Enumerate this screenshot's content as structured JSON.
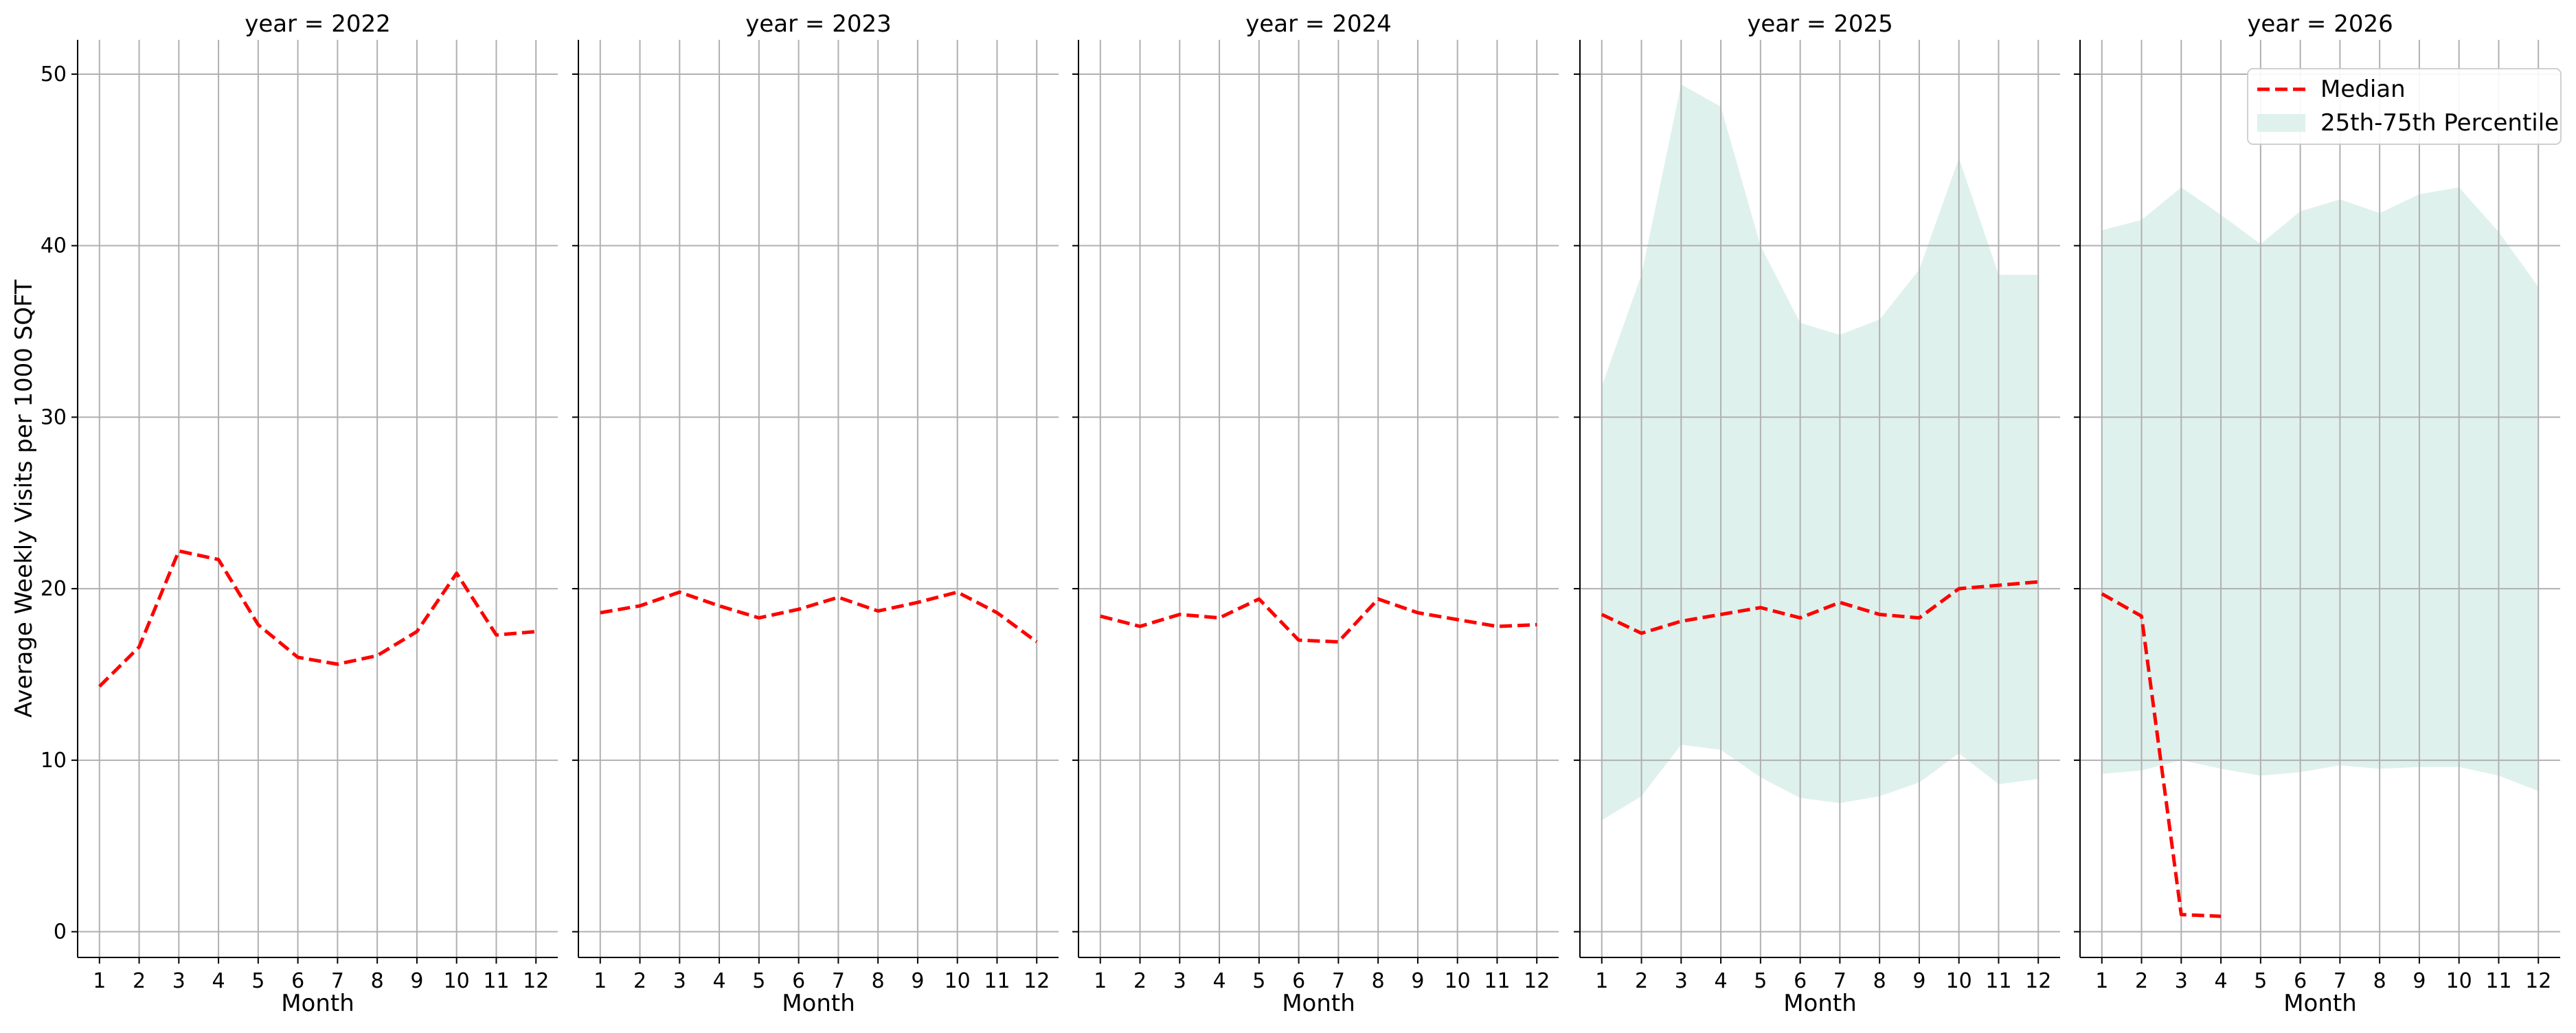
{
  "chart_data": {
    "type": "line",
    "ylabel": "Average Weekly Visits per 1000 SQFT",
    "xlabel": "Month",
    "ylim": [
      -1.5,
      52
    ],
    "yticks": [
      0,
      10,
      20,
      30,
      40,
      50
    ],
    "xticks": [
      1,
      2,
      3,
      4,
      5,
      6,
      7,
      8,
      9,
      10,
      11,
      12
    ],
    "xlim": [
      0.45,
      12.55
    ],
    "grid": true,
    "legend": {
      "position": "top-right",
      "entries": [
        "Median",
        "25th-75th Percentile"
      ]
    },
    "colors": {
      "median": "#ff0000",
      "band": "#dff1ec",
      "grid": "#b0b0b0"
    },
    "panels": [
      {
        "title": "year = 2022",
        "median": {
          "x": [
            1,
            2,
            3,
            4,
            5,
            6,
            7,
            8,
            9,
            10,
            11,
            12
          ],
          "y": [
            14.3,
            16.6,
            22.2,
            21.7,
            17.9,
            16.0,
            15.6,
            16.1,
            17.5,
            20.9,
            17.3,
            17.5
          ]
        },
        "band": null
      },
      {
        "title": "year = 2023",
        "median": {
          "x": [
            1,
            2,
            3,
            4,
            5,
            6,
            7,
            8,
            9,
            10,
            11,
            12
          ],
          "y": [
            18.6,
            19.0,
            19.8,
            19.0,
            18.3,
            18.8,
            19.5,
            18.7,
            19.2,
            19.8,
            18.6,
            16.9
          ]
        },
        "band": null
      },
      {
        "title": "year = 2024",
        "median": {
          "x": [
            1,
            2,
            3,
            4,
            5,
            6,
            7,
            8,
            9,
            10,
            11,
            12
          ],
          "y": [
            18.4,
            17.8,
            18.5,
            18.3,
            19.4,
            17.0,
            16.9,
            19.4,
            18.6,
            18.2,
            17.8,
            17.9
          ]
        },
        "band": null
      },
      {
        "title": "year = 2025",
        "median": {
          "x": [
            1,
            2,
            3,
            4,
            5,
            6,
            7,
            8,
            9,
            10,
            11,
            12
          ],
          "y": [
            18.5,
            17.4,
            18.1,
            18.5,
            18.9,
            18.3,
            19.2,
            18.5,
            18.3,
            20.0,
            20.2,
            20.4
          ]
        },
        "band": {
          "x": [
            1,
            2,
            3,
            4,
            5,
            6,
            7,
            8,
            9,
            10,
            11,
            12
          ],
          "low": [
            6.5,
            7.9,
            10.9,
            10.6,
            9.0,
            7.8,
            7.5,
            7.9,
            8.7,
            10.4,
            8.6,
            8.9
          ],
          "high": [
            31.8,
            38.3,
            49.4,
            48.1,
            40.0,
            35.5,
            34.8,
            35.7,
            38.6,
            45.1,
            38.3,
            38.3
          ]
        }
      },
      {
        "title": "year = 2026",
        "median": {
          "x": [
            1,
            2,
            3,
            4
          ],
          "y": [
            19.7,
            18.4,
            1.0,
            0.9
          ]
        },
        "band": {
          "x": [
            1,
            2,
            3,
            4,
            5,
            6,
            7,
            8,
            9,
            10,
            11,
            12
          ],
          "low": [
            9.2,
            9.4,
            10.0,
            9.5,
            9.1,
            9.3,
            9.7,
            9.5,
            9.6,
            9.6,
            9.1,
            8.2
          ],
          "high": [
            40.9,
            41.5,
            43.4,
            41.8,
            40.1,
            42.0,
            42.7,
            41.9,
            43.0,
            43.4,
            40.8,
            37.6
          ]
        }
      }
    ]
  }
}
